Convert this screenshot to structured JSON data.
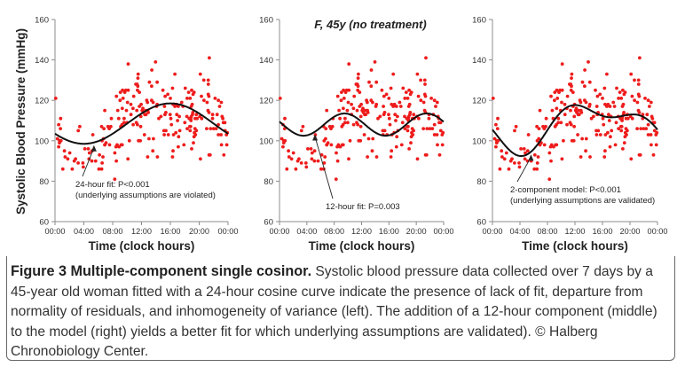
{
  "ylabel": "Systolic Blood Pressure (mmHg)",
  "colors": {
    "points": "#ee1c1c",
    "curve": "#111111",
    "axis": "#8c8c8c"
  },
  "chart_data": [
    {
      "type": "scatter",
      "title": "",
      "xlabel": "Time (clock hours)",
      "ylabel": "Systolic Blood Pressure (mmHg)",
      "ylim": [
        60,
        160
      ],
      "yticks": [
        "60",
        "80",
        "100",
        "120",
        "140",
        "160"
      ],
      "xticks": [
        "00:00",
        "04:00",
        "08:00",
        "12:00",
        "16:00",
        "20:00",
        "00:00"
      ],
      "grid": false,
      "fit": {
        "name": "24-hour fit",
        "mesor": 108.5,
        "components": [
          {
            "period": 24,
            "amplitude": 10,
            "acrophase_h": 16
          }
        ]
      },
      "annotation": {
        "lines": [
          "24-hour fit: P<0.001",
          "(underlying assumptions are violated)"
        ],
        "point_hour": 5.4
      }
    },
    {
      "type": "scatter",
      "title": "F, 45y (no treatment)",
      "xlabel": "Time (clock hours)",
      "ylabel": "",
      "ylim": [
        60,
        160
      ],
      "yticks": [
        "60",
        "80",
        "100",
        "120",
        "140",
        "160"
      ],
      "xticks": [
        "00:00",
        "04:00",
        "08:00",
        "12:00",
        "16:00",
        "20:00",
        "00:00"
      ],
      "grid": false,
      "fit": {
        "name": "12-hour fit",
        "mesor": 108,
        "components": [
          {
            "period": 12,
            "amplitude": 5.5,
            "acrophase_h": 9.5
          }
        ]
      },
      "annotation": {
        "lines": [
          "12-hour fit: P=0.003"
        ],
        "point_hour": 5.2
      }
    },
    {
      "type": "scatter",
      "title": "",
      "xlabel": "Time (clock hours)",
      "ylabel": "",
      "ylim": [
        60,
        160
      ],
      "yticks": [
        "60",
        "80",
        "100",
        "120",
        "140",
        "160"
      ],
      "xticks": [
        "00:00",
        "04:00",
        "08:00",
        "12:00",
        "16:00",
        "20:00",
        "00:00"
      ],
      "grid": false,
      "fit": {
        "name": "2-component model",
        "mesor": 107.7,
        "components": [
          {
            "period": 24,
            "amplitude": 10,
            "acrophase_h": 15.5
          },
          {
            "period": 12,
            "amplitude": 5.5,
            "acrophase_h": 10.5
          }
        ]
      },
      "annotation": {
        "lines": [
          "2-component model: P<0.001",
          "(underlying assumptions are validated)"
        ],
        "point_hour": 5.6
      }
    }
  ],
  "caption": {
    "title": "Figure 3 Multiple-component single cosinor.",
    "text": " Systolic blood pressure data collected over 7 days by a 45-year old woman fitted with a 24-hour cosine curve indicate the presence of lack of fit, departure from normality of residuals, and inhomogeneity of variance (left). The addition of a 12-hour component (middle) to the model (right) yields a better fit for which underlying assumptions are validated). © Halberg Chronobiology Center."
  }
}
